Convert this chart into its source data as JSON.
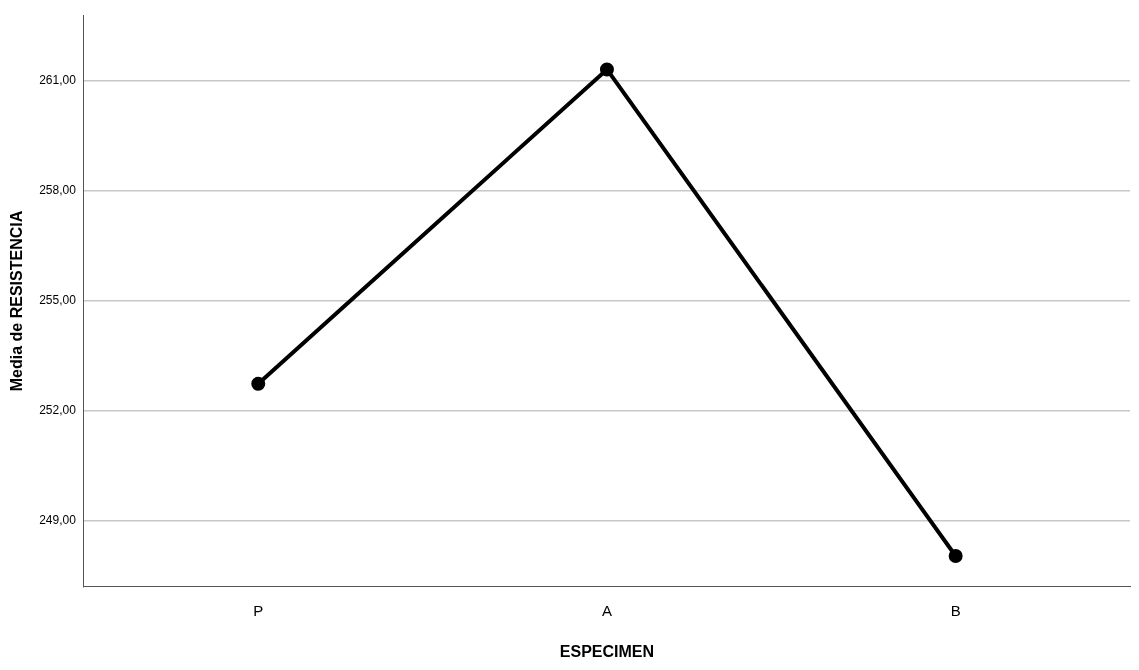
{
  "chart_data": {
    "type": "line",
    "xlabel": "ESPECIMEN",
    "ylabel": "Media de RESISTENCIA",
    "categories": [
      "P",
      "A",
      "B"
    ],
    "series": [
      {
        "color": "#000000",
        "values": [
          252.74,
          261.32,
          248.04
        ]
      }
    ],
    "ylim": [
      247.2,
      262.8
    ],
    "yticks": [
      {
        "value": 249,
        "label": "249,00"
      },
      {
        "value": 252,
        "label": "252,00"
      },
      {
        "value": 255,
        "label": "255,00"
      },
      {
        "value": 258,
        "label": "258,00"
      },
      {
        "value": 261,
        "label": "261,00"
      }
    ],
    "grid": "y",
    "marker": "circle",
    "line_style": "solid"
  }
}
